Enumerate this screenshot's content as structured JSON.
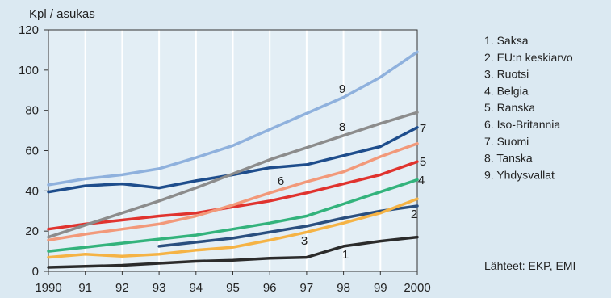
{
  "chart_data": {
    "type": "line",
    "ylabel": "Kpl / asukas",
    "x": [
      "1990",
      "91",
      "92",
      "93",
      "94",
      "95",
      "96",
      "97",
      "98",
      "99",
      "2000"
    ],
    "ylim": [
      0,
      120
    ],
    "yticks": [
      "0",
      "20",
      "40",
      "60",
      "80",
      "100",
      "120"
    ],
    "grid": "vertical",
    "series": [
      {
        "name": "1. Saksa",
        "label": "1",
        "color": "#2b2b2b",
        "values": [
          2,
          2.5,
          3,
          4,
          5,
          5.5,
          6.5,
          7,
          12.5,
          15,
          17
        ]
      },
      {
        "name": "2. EU:n keskiarvo",
        "label": "2",
        "color": "#2a4f7f",
        "values": [
          null,
          null,
          null,
          12.5,
          14.5,
          16.5,
          19.5,
          22.5,
          26.5,
          30,
          32.5
        ]
      },
      {
        "name": "3. Ruotsi",
        "label": "3",
        "color": "#f5b345",
        "values": [
          7,
          8.5,
          7.5,
          8.5,
          10.5,
          12,
          15.5,
          19.5,
          24,
          29,
          36
        ]
      },
      {
        "name": "4. Belgia",
        "label": "4",
        "color": "#33b37c",
        "values": [
          10,
          12,
          14,
          16,
          18,
          21,
          24,
          27.5,
          33.5,
          39.5,
          45.5
        ]
      },
      {
        "name": "5. Ranska",
        "label": "5",
        "color": "#e0332e",
        "values": [
          21,
          23.5,
          25.5,
          27.5,
          29,
          32,
          35,
          39,
          43.5,
          48,
          54.5
        ]
      },
      {
        "name": "6. Iso-Britannia",
        "label": "6",
        "color": "#f2997a",
        "values": [
          15.5,
          18.5,
          21,
          23.5,
          27.5,
          33,
          39,
          44.5,
          49.5,
          57,
          63.5
        ]
      },
      {
        "name": "7. Suomi",
        "label": "7",
        "color": "#1e4d8c",
        "values": [
          39.5,
          42.5,
          43.5,
          41.5,
          45,
          48,
          51.5,
          53,
          57.5,
          62,
          71.5
        ]
      },
      {
        "name": "8. Tanska",
        "label": "8",
        "color": "#8c8c8c",
        "values": [
          17,
          23,
          29,
          35,
          41.5,
          48.5,
          55.5,
          61.5,
          67.5,
          73.5,
          79
        ]
      },
      {
        "name": "9. Yhdysvallat",
        "label": "9",
        "color": "#8fb1dd",
        "values": [
          43,
          46,
          48,
          51,
          56.5,
          62.5,
          70.5,
          78.5,
          86.5,
          96.5,
          109
        ]
      }
    ],
    "source": "Lähteet: EKP, EMI"
  }
}
